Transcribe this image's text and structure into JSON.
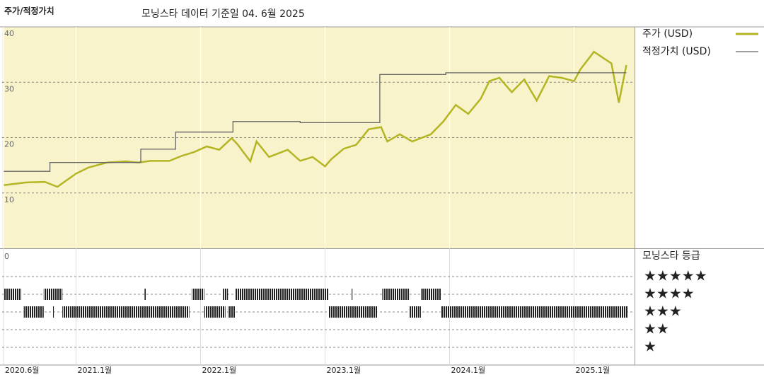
{
  "chart_data": {
    "type": "line",
    "title": "주가/적정가치",
    "subtitle": "모닝스타 데이터 기준일 04. 6월 2025",
    "xlim": [
      2020.406,
      2025.486
    ],
    "xticks": [
      {
        "value": 2020.417,
        "label": "2020.6월"
      },
      {
        "value": 2021.0,
        "label": "2021.1월"
      },
      {
        "value": 2022.0,
        "label": "2022.1월"
      },
      {
        "value": 2023.0,
        "label": "2023.1월"
      },
      {
        "value": 2024.0,
        "label": "2024.1월"
      },
      {
        "value": 2025.0,
        "label": "2025.1월"
      }
    ],
    "ylim": [
      0,
      40
    ],
    "yticks": [
      10,
      20,
      30,
      40
    ],
    "grid": true,
    "series": [
      {
        "name": "주가 (USD)",
        "color": "#b3b523",
        "x": [
          2020.42,
          2020.6,
          2020.75,
          2020.85,
          2021.0,
          2021.1,
          2021.25,
          2021.4,
          2021.5,
          2021.6,
          2021.75,
          2021.85,
          2021.95,
          2022.05,
          2022.15,
          2022.25,
          2022.3,
          2022.4,
          2022.45,
          2022.55,
          2022.7,
          2022.8,
          2022.9,
          2023.0,
          2023.05,
          2023.15,
          2023.25,
          2023.35,
          2023.45,
          2023.5,
          2023.6,
          2023.7,
          2023.85,
          2023.95,
          2024.05,
          2024.15,
          2024.25,
          2024.32,
          2024.4,
          2024.5,
          2024.6,
          2024.7,
          2024.8,
          2024.9,
          2025.0,
          2025.05,
          2025.16,
          2025.3,
          2025.36,
          2025.42
        ],
        "values": [
          11.4,
          11.9,
          12.0,
          11.1,
          13.5,
          14.6,
          15.5,
          15.7,
          15.5,
          15.8,
          15.8,
          16.7,
          17.4,
          18.4,
          17.8,
          19.9,
          18.7,
          15.7,
          19.3,
          16.5,
          17.8,
          15.8,
          16.5,
          14.8,
          16.1,
          18.0,
          18.7,
          21.5,
          21.9,
          19.3,
          20.6,
          19.3,
          20.6,
          22.9,
          25.9,
          24.3,
          27.0,
          30.2,
          30.8,
          28.2,
          30.5,
          26.7,
          31.1,
          30.8,
          30.2,
          32.3,
          35.5,
          33.4,
          26.3,
          33.1
        ]
      },
      {
        "name": "적정가치 (USD)",
        "color": "#666666",
        "x": [
          2020.42,
          2020.79,
          2020.79,
          2021.52,
          2021.52,
          2021.8,
          2021.8,
          2022.26,
          2022.26,
          2022.8,
          2022.8,
          2023.44,
          2023.44,
          2023.97,
          2023.97,
          2025.42
        ],
        "values": [
          13.9,
          13.9,
          15.5,
          15.5,
          17.9,
          17.9,
          21.0,
          21.0,
          22.9,
          22.9,
          22.7,
          22.7,
          31.4,
          31.4,
          31.7,
          31.7
        ]
      }
    ],
    "rating_title": "모닝스타 등급",
    "rating_axis_label": "0",
    "rating_labels": [
      "★★★★★",
      "★★★★",
      "★★★",
      "★★",
      "★"
    ],
    "ratings": {
      "start": [
        2020.42,
        2020.74,
        2021.55,
        2021.93,
        2022.18,
        2022.28,
        2023.21,
        2023.46,
        2023.77,
        2020.58,
        2020.81,
        2020.89,
        2022.03,
        2022.22,
        2023.03,
        2023.68,
        2023.93
      ],
      "end": [
        2020.56,
        2020.89,
        2021.56,
        2022.03,
        2022.22,
        2023.03,
        2023.22,
        2023.68,
        2023.93,
        2020.74,
        2020.82,
        2021.91,
        2022.2,
        2022.28,
        2023.42,
        2023.77,
        2025.43
      ],
      "values": [
        4,
        4,
        4,
        4,
        4,
        4,
        4,
        4,
        4,
        3,
        3,
        3,
        3,
        3,
        3,
        3,
        3
      ]
    }
  }
}
